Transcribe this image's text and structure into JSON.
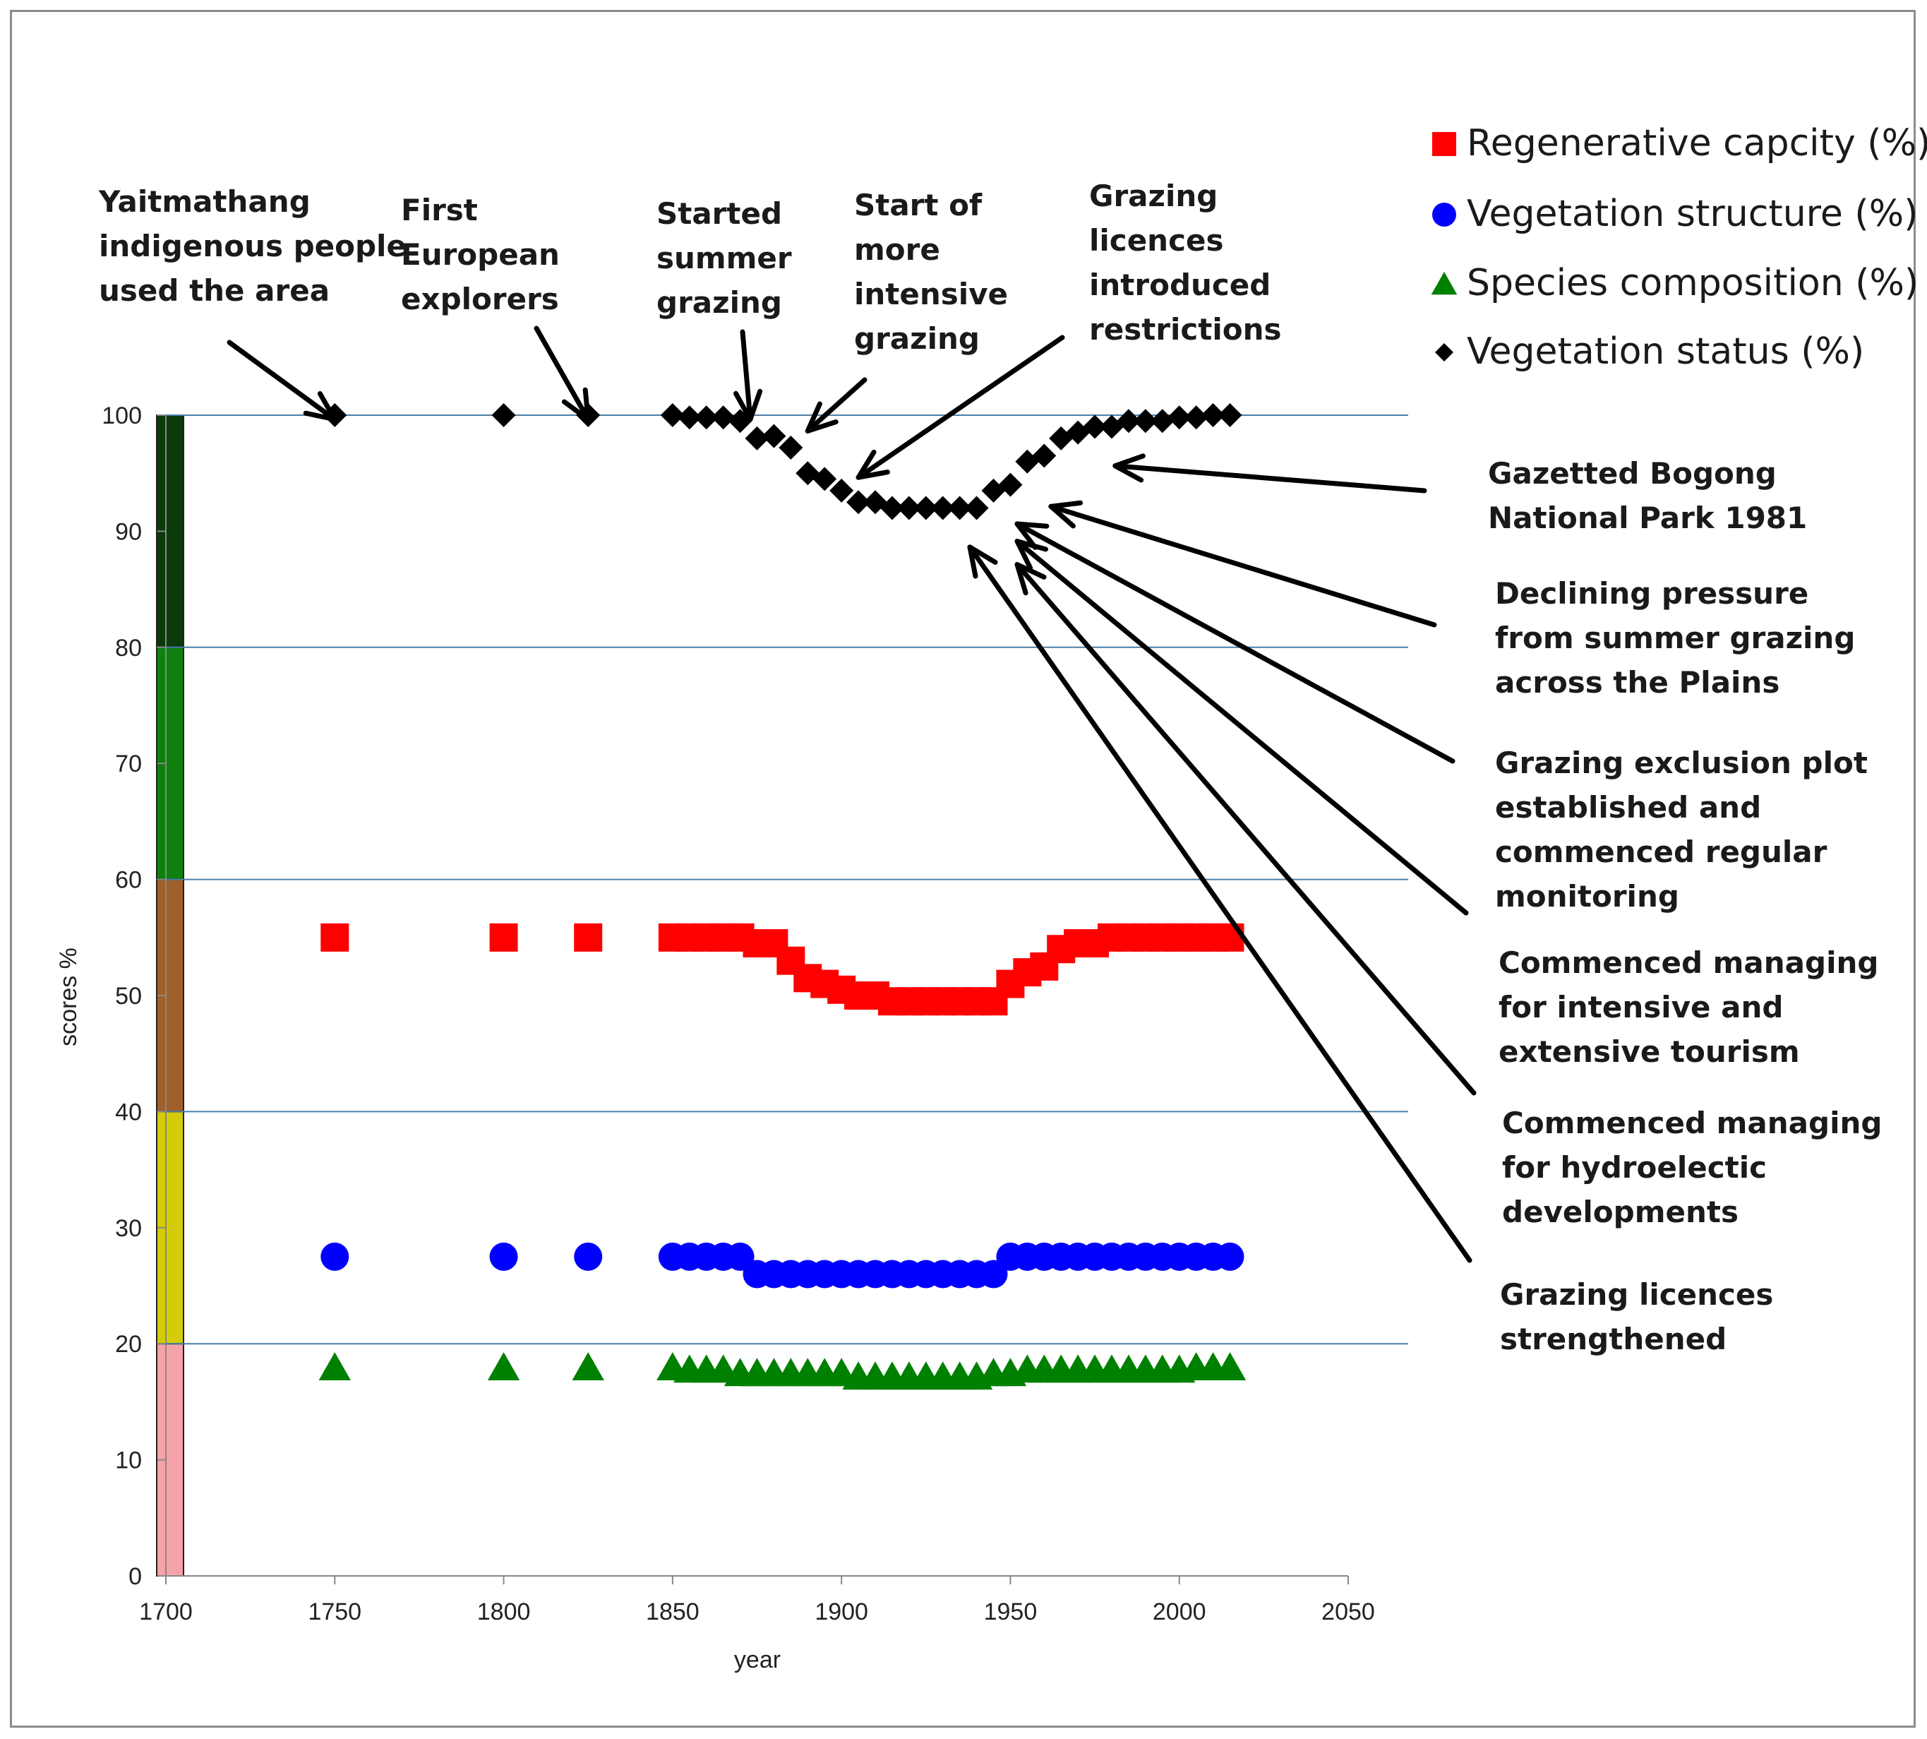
{
  "chart_data": {
    "type": "scatter",
    "title": "",
    "xlabel": "year",
    "ylabel": "scores %",
    "xlim": [
      1700,
      2050
    ],
    "ylim": [
      0,
      100
    ],
    "x_ticks": [
      "1700",
      "1750",
      "1800",
      "1850",
      "1900",
      "1950",
      "2000",
      "2050"
    ],
    "y_ticks": [
      "0",
      "10",
      "20",
      "30",
      "40",
      "50",
      "60",
      "70",
      "80",
      "90",
      "100"
    ],
    "x": [
      1750,
      1800,
      1825,
      1850,
      1855,
      1860,
      1865,
      1870,
      1875,
      1880,
      1885,
      1890,
      1895,
      1900,
      1905,
      1910,
      1915,
      1920,
      1925,
      1930,
      1935,
      1940,
      1945,
      1950,
      1955,
      1960,
      1965,
      1970,
      1975,
      1980,
      1985,
      1990,
      1995,
      2000,
      2005,
      2010,
      2015
    ],
    "series": [
      {
        "name": "Regenerative capcity (%)",
        "color": "#ff0000",
        "marker": "square",
        "values": [
          55,
          55,
          55,
          55,
          55,
          55,
          55,
          55,
          54.5,
          54.5,
          53,
          51.5,
          51,
          50.5,
          50,
          50,
          49.5,
          49.5,
          49.5,
          49.5,
          49.5,
          49.5,
          49.5,
          51,
          52,
          52.5,
          54,
          54.5,
          54.5,
          55,
          55,
          55,
          55,
          55,
          55,
          55,
          55
        ]
      },
      {
        "name": "Vegetation structure (%)",
        "color": "#0000ff",
        "marker": "circle",
        "values": [
          27.5,
          27.5,
          27.5,
          27.5,
          27.5,
          27.5,
          27.5,
          27.5,
          26,
          26,
          26,
          26,
          26,
          26,
          26,
          26,
          26,
          26,
          26,
          26,
          26,
          26,
          26,
          27.5,
          27.5,
          27.5,
          27.5,
          27.5,
          27.5,
          27.5,
          27.5,
          27.5,
          27.5,
          27.5,
          27.5,
          27.5,
          27.5
        ]
      },
      {
        "name": "Species composition (%)",
        "color": "#008000",
        "marker": "triangle",
        "values": [
          18,
          18,
          18,
          18,
          17.8,
          17.8,
          17.8,
          17.5,
          17.5,
          17.5,
          17.5,
          17.5,
          17.5,
          17.5,
          17.2,
          17.2,
          17.2,
          17.2,
          17.2,
          17.2,
          17.2,
          17.2,
          17.5,
          17.5,
          17.8,
          17.8,
          17.8,
          17.8,
          17.8,
          17.8,
          17.8,
          17.8,
          17.8,
          17.8,
          18,
          18,
          18
        ]
      },
      {
        "name": "Vegetation status (%)",
        "color": "#000000",
        "marker": "diamond",
        "values": [
          100,
          100,
          100,
          100,
          99.8,
          99.8,
          99.8,
          99.5,
          98,
          98.2,
          97.2,
          95,
          94.5,
          93.5,
          92.5,
          92.5,
          92,
          92,
          92,
          92,
          92,
          92,
          93.5,
          94,
          96,
          96.5,
          98,
          98.5,
          99,
          99,
          99.5,
          99.5,
          99.5,
          99.8,
          99.8,
          100,
          100
        ]
      }
    ],
    "bands": [
      {
        "from": 0,
        "to": 20,
        "color": "#f5a3a8"
      },
      {
        "from": 20,
        "to": 40,
        "color": "#d4cc0a"
      },
      {
        "from": 40,
        "to": 60,
        "color": "#a0602a"
      },
      {
        "from": 60,
        "to": 80,
        "color": "#0e800e"
      },
      {
        "from": 80,
        "to": 100,
        "color": "#0a3a0a"
      }
    ],
    "legend_position": "top-right",
    "grid": true,
    "annotations": [
      {
        "id": "yaitmathang",
        "lines": [
          "Yaitmathang",
          "indigenous people",
          "used the area"
        ],
        "target": [
          1750,
          100
        ]
      },
      {
        "id": "first-european",
        "lines": [
          "First",
          "European",
          "explorers"
        ],
        "target": [
          1825,
          100
        ]
      },
      {
        "id": "summer-grazing",
        "lines": [
          "Started",
          "summer",
          "grazing"
        ],
        "target": [
          1873,
          100
        ]
      },
      {
        "id": "intensive-grazing",
        "lines": [
          "Start of",
          "more",
          "intensive",
          "grazing"
        ],
        "target": [
          1890,
          99
        ]
      },
      {
        "id": "grazing-licences-introduced",
        "lines": [
          "Grazing",
          "licences",
          "introduced",
          "restrictions"
        ],
        "target": [
          1905,
          95
        ]
      },
      {
        "id": "gazetted-bogong",
        "lines": [
          "Gazetted Bogong",
          "National Park 1981"
        ],
        "target": [
          1981,
          96
        ]
      },
      {
        "id": "declining-pressure",
        "lines": [
          "Declining pressure",
          "from summer grazing",
          "across the Plains"
        ],
        "target": [
          1962,
          92.5
        ]
      },
      {
        "id": "grazing-exclusion",
        "lines": [
          "Grazing exclusion plot",
          "established and",
          "commenced  regular",
          "monitoring"
        ],
        "target": [
          1952,
          91
        ]
      },
      {
        "id": "tourism",
        "lines": [
          "Commenced managing",
          "for intensive and",
          "extensive tourism"
        ],
        "target": [
          1952,
          89.5
        ]
      },
      {
        "id": "hydroelectric",
        "lines": [
          "Commenced managing",
          "for  hydroelectic",
          "developments"
        ],
        "target": [
          1952,
          87.5
        ]
      },
      {
        "id": "licences-strengthened",
        "lines": [
          "Grazing licences",
          "strengthened"
        ],
        "target": [
          1938,
          89
        ]
      }
    ]
  }
}
